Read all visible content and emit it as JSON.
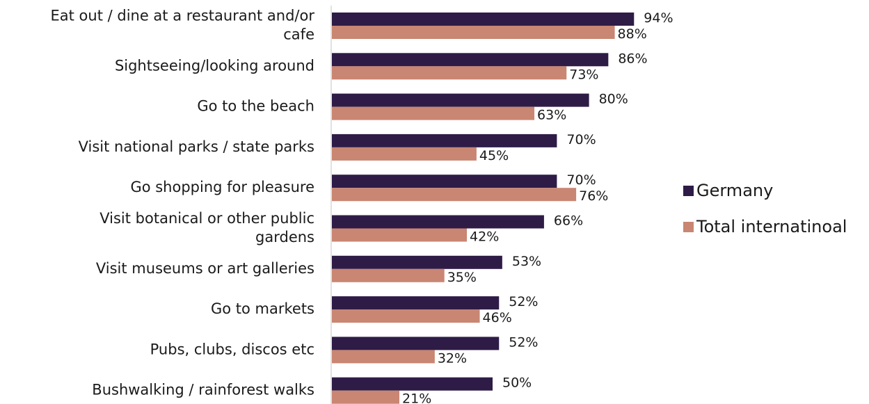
{
  "chart_data": {
    "type": "bar",
    "orientation": "horizontal",
    "categories": [
      [
        "Eat out / dine at a restaurant and/or",
        "cafe"
      ],
      [
        "Sightseeing/looking around"
      ],
      [
        "Go to the beach"
      ],
      [
        "Visit national parks / state parks"
      ],
      [
        "Go shopping for pleasure"
      ],
      [
        "Visit botanical or other public",
        "gardens"
      ],
      [
        "Visit museums or art galleries"
      ],
      [
        "Go to markets"
      ],
      [
        "Pubs, clubs, discos etc"
      ],
      [
        "Bushwalking / rainforest walks"
      ]
    ],
    "series": [
      {
        "name": "Germany",
        "color": "#2e1c47",
        "values": [
          94,
          86,
          80,
          70,
          70,
          66,
          53,
          52,
          52,
          50
        ],
        "labels": [
          "94%",
          "86%",
          "80%",
          "70%",
          "70%",
          "66%",
          "53%",
          "52%",
          "52%",
          "50%"
        ]
      },
      {
        "name": "Total internatinoal",
        "color": "#c98672",
        "values": [
          88,
          73,
          63,
          45,
          76,
          42,
          35,
          46,
          32,
          21
        ],
        "labels": [
          "88%",
          "73%",
          "63%",
          "45%",
          "76%",
          "42%",
          "35%",
          "46%",
          "32%",
          "21%"
        ]
      }
    ],
    "xlim": [
      0,
      100
    ],
    "value_suffix": "%",
    "grid": false,
    "legend_position": "right"
  }
}
